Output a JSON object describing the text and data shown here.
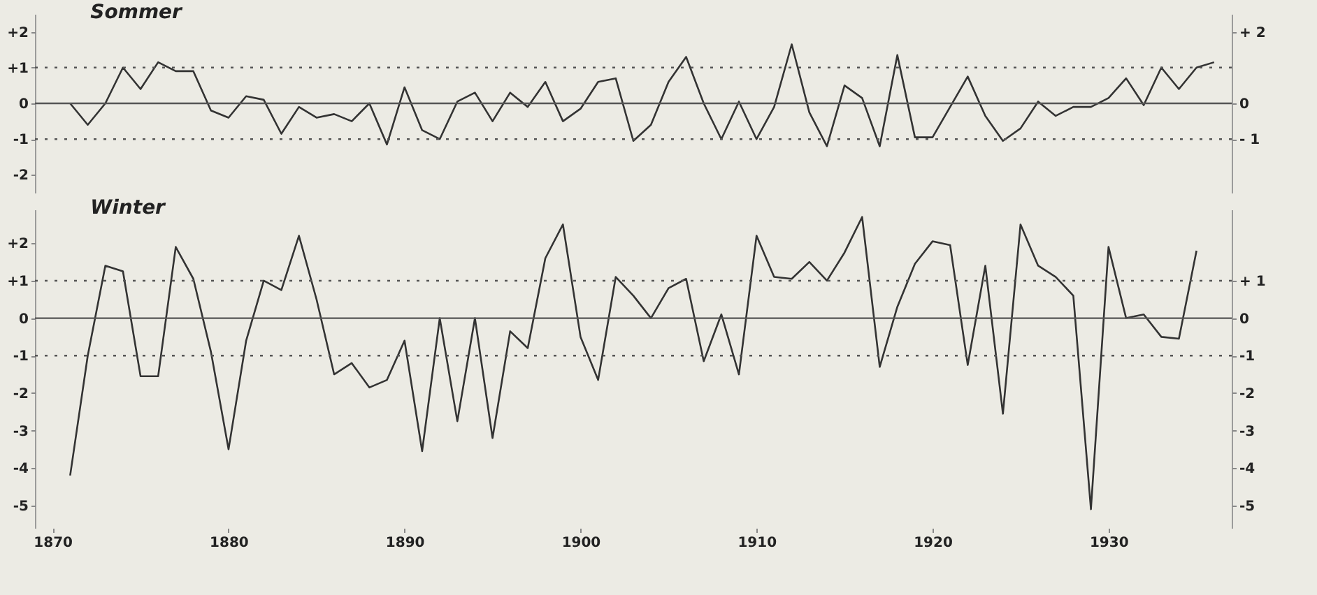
{
  "chart_data": [
    {
      "type": "line",
      "title": "Sommer",
      "x": [
        1871,
        1872,
        1873,
        1874,
        1875,
        1876,
        1877,
        1878,
        1879,
        1880,
        1881,
        1882,
        1883,
        1884,
        1885,
        1886,
        1887,
        1888,
        1889,
        1890,
        1891,
        1892,
        1893,
        1894,
        1895,
        1896,
        1897,
        1898,
        1899,
        1900,
        1901,
        1902,
        1903,
        1904,
        1905,
        1906,
        1907,
        1908,
        1909,
        1910,
        1911,
        1912,
        1913,
        1914,
        1915,
        1916,
        1917,
        1918,
        1919,
        1920,
        1921,
        1922,
        1923,
        1924,
        1925,
        1926,
        1927,
        1928,
        1929,
        1930,
        1931,
        1932,
        1933,
        1934,
        1935,
        1936
      ],
      "series": [
        {
          "color": "#333333",
          "values": [
            0,
            -0.6,
            0,
            1.0,
            0.4,
            1.15,
            0.9,
            0.9,
            -0.2,
            -0.4,
            0.2,
            0.1,
            -0.85,
            -0.1,
            -0.4,
            -0.3,
            -0.5,
            0,
            -1.15,
            0.45,
            -0.75,
            -1.0,
            0.05,
            0.3,
            -0.5,
            0.3,
            -0.1,
            0.6,
            -0.5,
            -0.15,
            0.6,
            0.7,
            -1.05,
            -0.6,
            0.6,
            1.3,
            0,
            -1.0,
            0.05,
            -1.0,
            -0.1,
            1.65,
            -0.25,
            -1.2,
            0.5,
            0.15,
            -1.2,
            1.35,
            -0.95,
            -0.95,
            -0.1,
            0.75,
            -0.35,
            -1.05,
            -0.7,
            0.05,
            -0.35,
            -0.1,
            -0.1,
            0.15,
            0.7,
            -0.05,
            1.0,
            0.4,
            1.0,
            1.15
          ]
        }
      ],
      "xlim": [
        1869,
        1937
      ],
      "ylim": [
        -2.5,
        2.5
      ],
      "yticks": [
        {
          "value": 2,
          "label": "+2"
        },
        {
          "value": 1,
          "label": "+1"
        },
        0,
        {
          "value": -1,
          "label": "-1"
        },
        {
          "value": -2,
          "label": "-2"
        }
      ],
      "y2lim": [
        -2.5,
        2.5
      ],
      "y2ticks": [
        {
          "value": 2,
          "label": "+ 2"
        },
        0,
        {
          "value": -1,
          "label": "- 1"
        }
      ],
      "tick_labels": "y",
      "ref_lines": [
        {
          "axis": "y",
          "value": 1,
          "line_style": "dotted",
          "color": "#555555"
        },
        {
          "axis": "y",
          "value": 0,
          "line_style": "solid",
          "color": "#555555"
        },
        {
          "axis": "y",
          "value": -1,
          "line_style": "dotted",
          "color": "#555555"
        }
      ]
    },
    {
      "type": "line",
      "title": "Winter",
      "x": [
        1871,
        1872,
        1873,
        1874,
        1875,
        1876,
        1877,
        1878,
        1879,
        1880,
        1881,
        1882,
        1883,
        1884,
        1885,
        1886,
        1887,
        1888,
        1889,
        1890,
        1891,
        1892,
        1893,
        1894,
        1895,
        1896,
        1897,
        1898,
        1899,
        1900,
        1901,
        1902,
        1903,
        1904,
        1905,
        1906,
        1907,
        1908,
        1909,
        1910,
        1911,
        1912,
        1913,
        1914,
        1915,
        1916,
        1917,
        1918,
        1919,
        1920,
        1921,
        1922,
        1923,
        1924,
        1925,
        1926,
        1927,
        1928,
        1929,
        1930,
        1931,
        1932,
        1933,
        1934,
        1935
      ],
      "series": [
        {
          "color": "#333333",
          "values": [
            -4.2,
            -1.0,
            1.4,
            1.25,
            -1.55,
            -1.55,
            1.9,
            1.05,
            -0.9,
            -3.5,
            -0.6,
            1.0,
            0.75,
            2.2,
            0.5,
            -1.5,
            -1.2,
            -1.85,
            -1.65,
            -0.6,
            -3.55,
            0,
            -2.75,
            0,
            -3.2,
            -0.35,
            -0.8,
            1.6,
            2.5,
            -0.5,
            -1.65,
            1.1,
            0.6,
            0,
            0.8,
            1.05,
            -1.15,
            0.1,
            -1.5,
            2.2,
            1.1,
            1.05,
            1.5,
            1.0,
            1.75,
            2.7,
            -1.3,
            0.3,
            1.45,
            2.05,
            1.95,
            -1.25,
            1.4,
            -2.55,
            2.5,
            1.4,
            1.1,
            0.6,
            -5.1,
            1.9,
            0,
            0.1,
            -0.5,
            -0.55,
            1.8
          ]
        }
      ],
      "xlim": [
        1869,
        1937
      ],
      "xticks": [
        1870,
        1880,
        1890,
        1900,
        1910,
        1920,
        1930
      ],
      "ylim": [
        -5.6,
        2.9
      ],
      "yticks": [
        {
          "value": 2,
          "label": "+2"
        },
        {
          "value": 1,
          "label": "+1"
        },
        0,
        {
          "value": -1,
          "label": "-1"
        },
        {
          "value": -2,
          "label": "-2"
        },
        {
          "value": -3,
          "label": "-3"
        },
        {
          "value": -4,
          "label": "-4"
        },
        {
          "value": -5,
          "label": "-5"
        }
      ],
      "y2lim": [
        -5.6,
        2.9
      ],
      "y2ticks": [
        {
          "value": 1,
          "label": "+ 1"
        },
        0,
        {
          "value": -1,
          "label": "-1"
        },
        {
          "value": -2,
          "label": "-2"
        },
        {
          "value": -3,
          "label": "-3"
        },
        {
          "value": -4,
          "label": "-4"
        },
        {
          "value": -5,
          "label": "-5"
        }
      ],
      "ref_lines": [
        {
          "axis": "y",
          "value": 1,
          "line_style": "dotted",
          "color": "#555555"
        },
        {
          "axis": "y",
          "value": 0,
          "line_style": "solid",
          "color": "#555555"
        },
        {
          "axis": "y",
          "value": -1,
          "line_style": "dotted",
          "color": "#555555"
        }
      ]
    }
  ]
}
